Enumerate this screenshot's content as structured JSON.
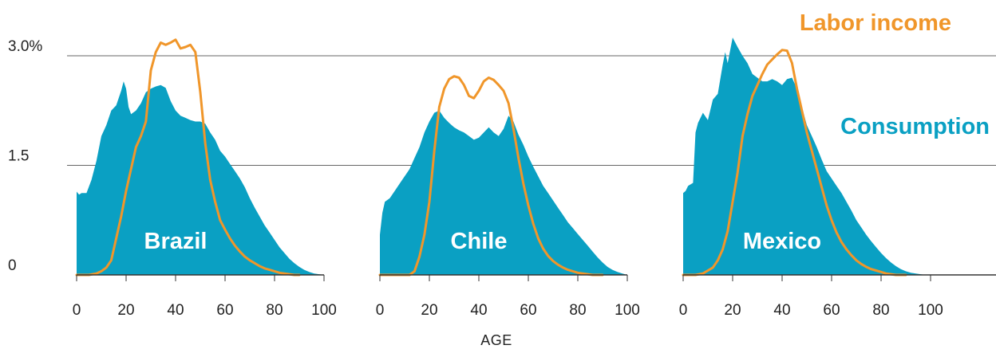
{
  "chart_data": {
    "type": "area",
    "xlabel": "AGE",
    "ylabel": "",
    "ylim": [
      0,
      3.0
    ],
    "yticks": [
      {
        "value": 0,
        "label": "0"
      },
      {
        "value": 1.5,
        "label": "1.5"
      },
      {
        "value": 3.0,
        "label": "3.0%"
      }
    ],
    "xlim": [
      0,
      100
    ],
    "xticks": [
      0,
      20,
      40,
      60,
      80,
      100
    ],
    "grid": "horizontal",
    "legend": [
      {
        "name": "Labor income",
        "color": "#f0962a",
        "placement": "top-right"
      },
      {
        "name": "Consumption",
        "color": "#0aa0c3",
        "placement": "right"
      }
    ],
    "colors": {
      "consumption": "#0aa0c3",
      "labor_income": "#f0962a",
      "grid": "#666666",
      "axis": "#333333"
    },
    "panels": [
      {
        "name": "Brazil",
        "consumption": {
          "x": [
            0,
            1,
            2,
            4,
            6,
            8,
            10,
            12,
            14,
            16,
            18,
            19,
            20,
            21,
            22,
            24,
            26,
            28,
            30,
            32,
            34,
            36,
            38,
            40,
            42,
            44,
            46,
            48,
            50,
            52,
            54,
            56,
            58,
            60,
            62,
            64,
            66,
            68,
            70,
            72,
            74,
            76,
            78,
            80,
            82,
            84,
            86,
            88,
            90,
            92,
            94,
            96,
            98,
            100
          ],
          "y": [
            1.14,
            1.1,
            1.12,
            1.12,
            1.3,
            1.56,
            1.9,
            2.05,
            2.25,
            2.32,
            2.52,
            2.65,
            2.55,
            2.3,
            2.2,
            2.25,
            2.35,
            2.5,
            2.55,
            2.58,
            2.6,
            2.56,
            2.38,
            2.25,
            2.18,
            2.15,
            2.12,
            2.1,
            2.1,
            2.07,
            1.95,
            1.85,
            1.7,
            1.62,
            1.52,
            1.42,
            1.32,
            1.2,
            1.05,
            0.92,
            0.8,
            0.68,
            0.58,
            0.48,
            0.38,
            0.3,
            0.22,
            0.16,
            0.11,
            0.07,
            0.04,
            0.02,
            0.01,
            0.0
          ]
        },
        "labor_income": {
          "x": [
            0,
            5,
            8,
            10,
            12,
            14,
            16,
            18,
            20,
            22,
            24,
            26,
            28,
            30,
            32,
            34,
            36,
            38,
            40,
            42,
            44,
            46,
            48,
            50,
            52,
            54,
            56,
            58,
            60,
            62,
            64,
            66,
            68,
            70,
            72,
            74,
            76,
            78,
            80,
            82,
            84,
            86,
            88,
            90
          ],
          "y": [
            0.0,
            0.0,
            0.02,
            0.05,
            0.1,
            0.2,
            0.5,
            0.8,
            1.15,
            1.45,
            1.75,
            1.9,
            2.1,
            2.8,
            3.05,
            3.18,
            3.15,
            3.18,
            3.22,
            3.1,
            3.12,
            3.15,
            3.05,
            2.5,
            1.8,
            1.3,
            1.0,
            0.75,
            0.62,
            0.5,
            0.4,
            0.32,
            0.25,
            0.2,
            0.16,
            0.12,
            0.09,
            0.07,
            0.05,
            0.03,
            0.02,
            0.01,
            0.0,
            0.0
          ]
        }
      },
      {
        "name": "Chile",
        "consumption": {
          "x": [
            0,
            1,
            2,
            4,
            6,
            8,
            10,
            12,
            14,
            16,
            18,
            20,
            22,
            24,
            26,
            28,
            30,
            32,
            34,
            36,
            38,
            40,
            42,
            44,
            46,
            48,
            50,
            52,
            54,
            56,
            58,
            60,
            62,
            64,
            66,
            68,
            70,
            72,
            74,
            76,
            78,
            80,
            82,
            84,
            86,
            88,
            90,
            92,
            94,
            96,
            98,
            100
          ],
          "y": [
            0.55,
            0.85,
            1.0,
            1.05,
            1.15,
            1.25,
            1.35,
            1.45,
            1.6,
            1.75,
            1.95,
            2.1,
            2.22,
            2.25,
            2.15,
            2.08,
            2.02,
            1.98,
            1.95,
            1.9,
            1.85,
            1.88,
            1.95,
            2.02,
            1.95,
            1.9,
            2.0,
            2.18,
            2.1,
            1.92,
            1.78,
            1.62,
            1.48,
            1.35,
            1.22,
            1.12,
            1.02,
            0.92,
            0.82,
            0.72,
            0.64,
            0.56,
            0.48,
            0.4,
            0.32,
            0.24,
            0.17,
            0.11,
            0.07,
            0.04,
            0.02,
            0.0
          ]
        },
        "labor_income": {
          "x": [
            0,
            10,
            12,
            14,
            16,
            18,
            20,
            22,
            24,
            26,
            28,
            30,
            32,
            34,
            36,
            38,
            40,
            42,
            44,
            46,
            48,
            50,
            52,
            54,
            56,
            58,
            60,
            62,
            64,
            66,
            68,
            70,
            72,
            74,
            76,
            78,
            80,
            82,
            84,
            86,
            88,
            90
          ],
          "y": [
            0.0,
            0.0,
            0.0,
            0.05,
            0.25,
            0.55,
            1.0,
            1.7,
            2.3,
            2.55,
            2.68,
            2.72,
            2.7,
            2.6,
            2.45,
            2.42,
            2.52,
            2.65,
            2.7,
            2.67,
            2.6,
            2.52,
            2.35,
            2.0,
            1.6,
            1.25,
            0.95,
            0.7,
            0.5,
            0.36,
            0.26,
            0.19,
            0.14,
            0.1,
            0.07,
            0.05,
            0.03,
            0.02,
            0.01,
            0.0,
            0.0,
            0.0
          ]
        }
      },
      {
        "name": "Mexico",
        "consumption": {
          "x": [
            0,
            1,
            2,
            4,
            5,
            6,
            8,
            10,
            12,
            14,
            16,
            17,
            18,
            20,
            22,
            24,
            26,
            28,
            30,
            32,
            34,
            36,
            38,
            40,
            42,
            44,
            46,
            48,
            50,
            52,
            54,
            56,
            58,
            60,
            62,
            64,
            66,
            68,
            70,
            72,
            74,
            76,
            78,
            80,
            82,
            84,
            86,
            88,
            90,
            92,
            94,
            96,
            98,
            100
          ],
          "y": [
            1.12,
            1.15,
            1.22,
            1.26,
            1.95,
            2.08,
            2.22,
            2.12,
            2.4,
            2.48,
            2.88,
            3.05,
            2.9,
            3.25,
            3.12,
            3.0,
            2.9,
            2.75,
            2.7,
            2.65,
            2.65,
            2.68,
            2.65,
            2.6,
            2.68,
            2.7,
            2.55,
            2.3,
            2.05,
            1.9,
            1.75,
            1.58,
            1.42,
            1.32,
            1.22,
            1.12,
            1.0,
            0.88,
            0.75,
            0.65,
            0.55,
            0.46,
            0.38,
            0.3,
            0.23,
            0.17,
            0.12,
            0.08,
            0.05,
            0.03,
            0.02,
            0.01,
            0.0,
            0.0
          ]
        },
        "labor_income": {
          "x": [
            0,
            5,
            8,
            10,
            12,
            14,
            16,
            18,
            20,
            22,
            24,
            26,
            28,
            30,
            32,
            34,
            36,
            38,
            40,
            42,
            44,
            46,
            48,
            50,
            52,
            54,
            56,
            58,
            60,
            62,
            64,
            66,
            68,
            70,
            72,
            74,
            76,
            78,
            80,
            82,
            84,
            86,
            88,
            90
          ],
          "y": [
            0.0,
            0.0,
            0.02,
            0.06,
            0.1,
            0.2,
            0.35,
            0.6,
            1.0,
            1.4,
            1.9,
            2.2,
            2.45,
            2.6,
            2.75,
            2.88,
            2.95,
            3.02,
            3.08,
            3.07,
            2.9,
            2.55,
            2.25,
            1.95,
            1.7,
            1.45,
            1.2,
            0.95,
            0.75,
            0.58,
            0.45,
            0.35,
            0.27,
            0.2,
            0.15,
            0.11,
            0.08,
            0.06,
            0.04,
            0.02,
            0.01,
            0.0,
            0.0,
            0.0
          ]
        }
      }
    ]
  }
}
